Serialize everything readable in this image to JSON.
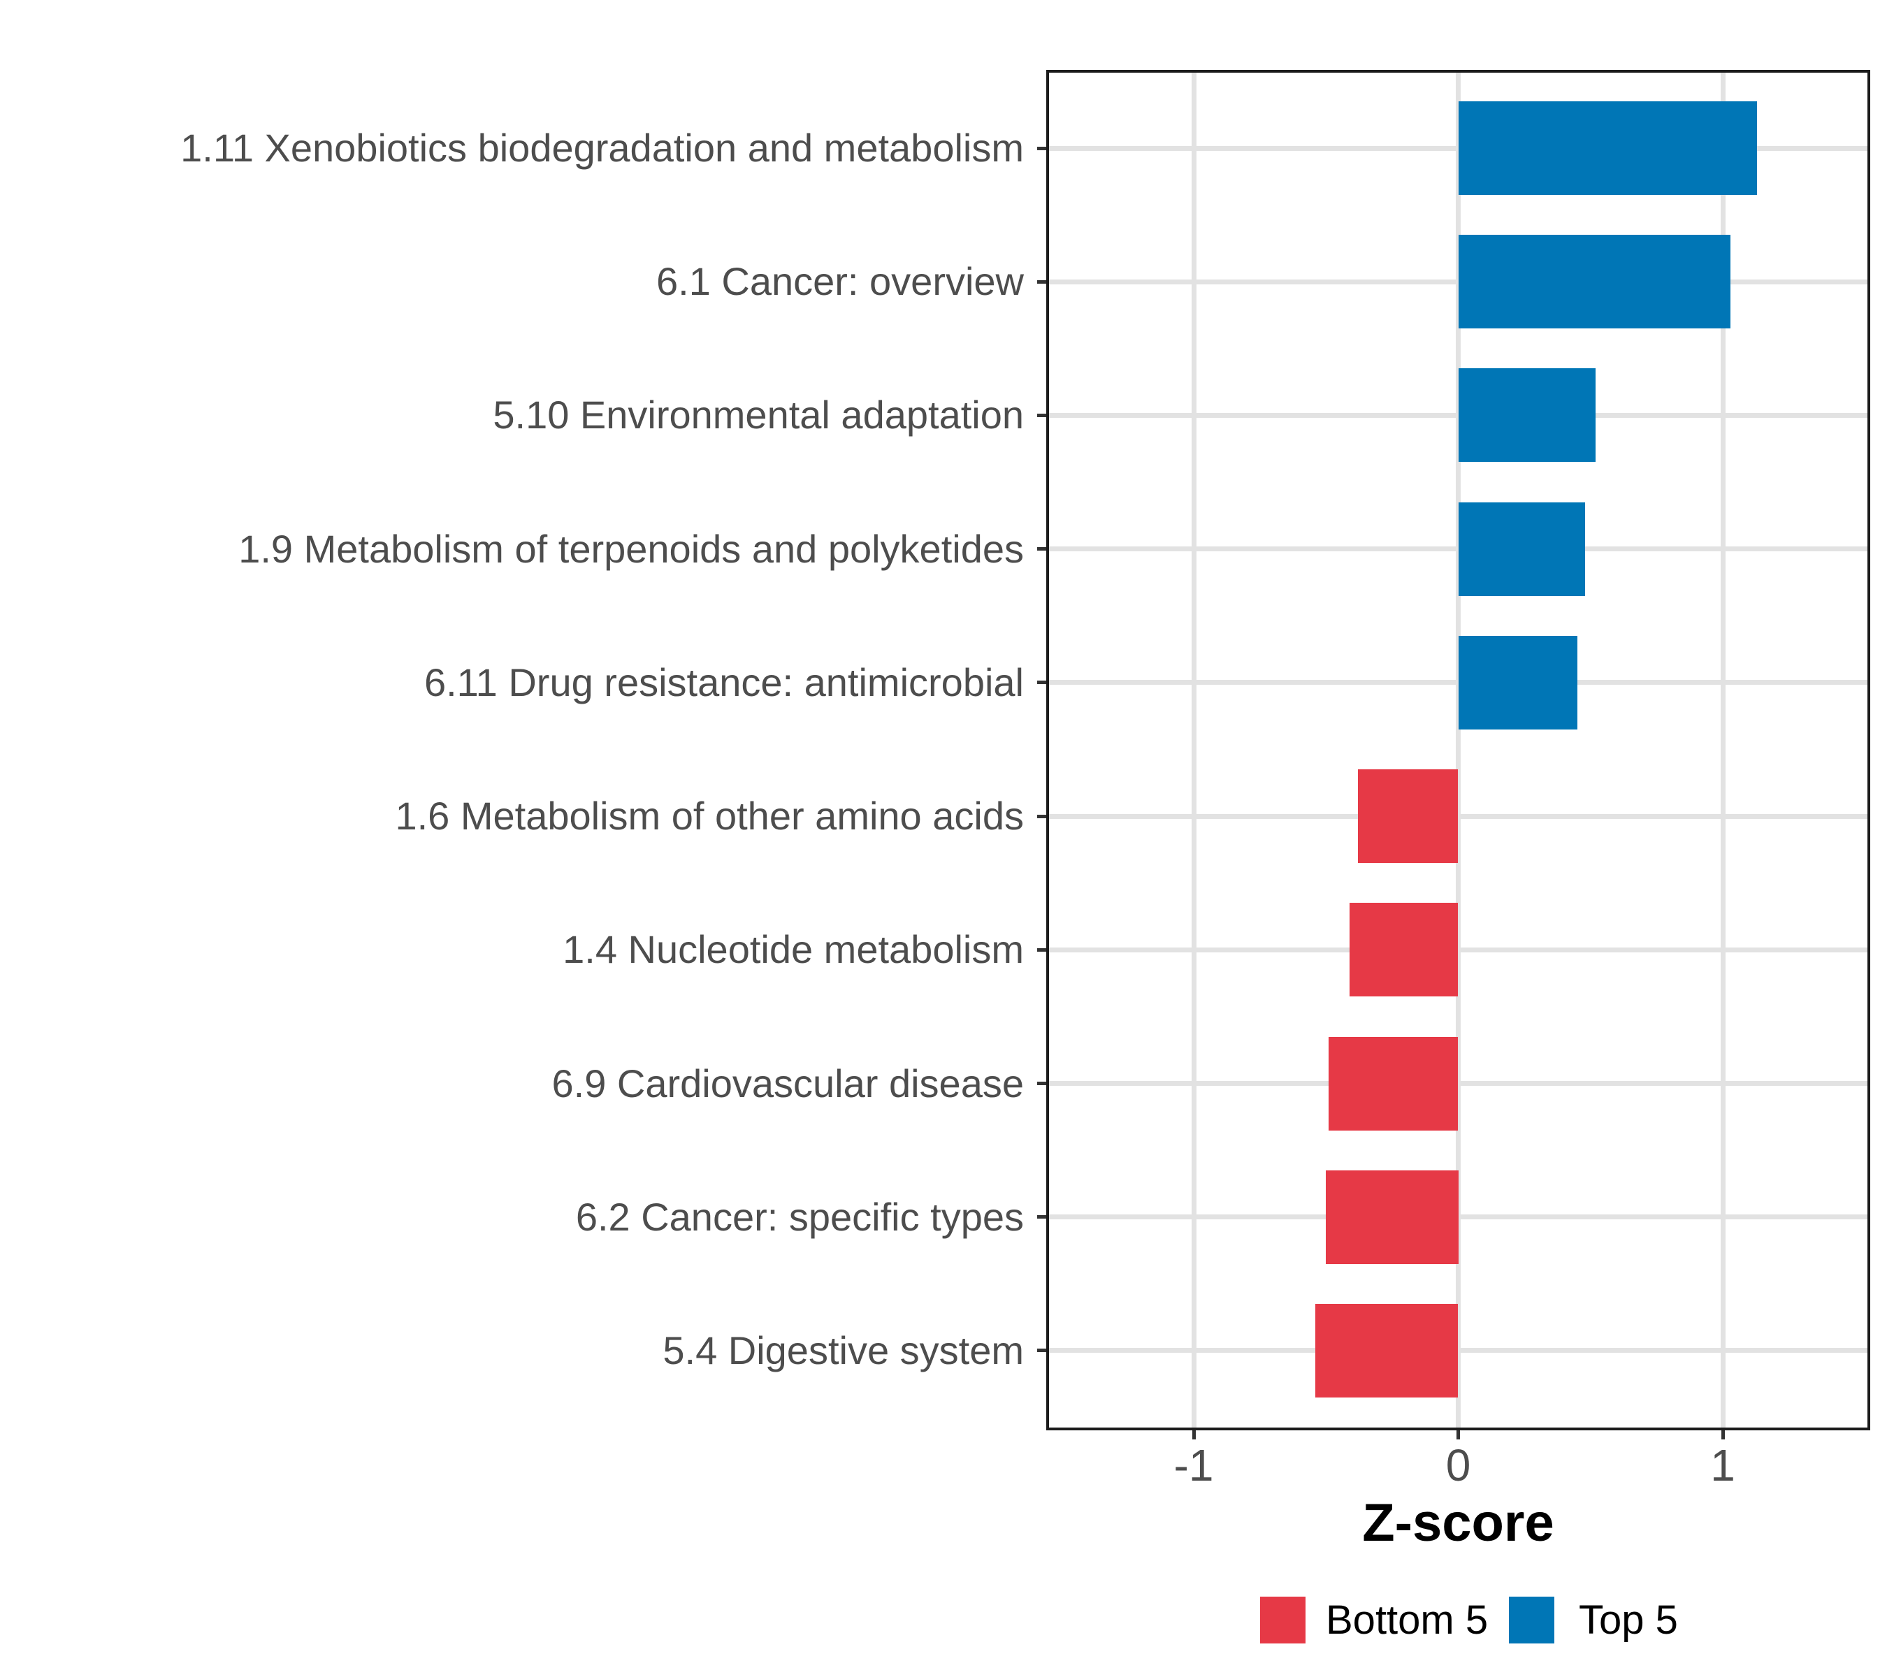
{
  "chart_data": {
    "type": "bar",
    "orientation": "horizontal",
    "title": "",
    "xlabel": "Z-score",
    "ylabel": "",
    "xlim": [
      -1.56,
      1.56
    ],
    "x_ticks": [
      "-1",
      "0",
      "1"
    ],
    "x_tick_values": [
      -1,
      0,
      1
    ],
    "grid": true,
    "legend_position": "bottom",
    "bars": [
      {
        "label": "1.11 Xenobiotics biodegradation and metabolism",
        "value": 1.13,
        "group": "Top 5"
      },
      {
        "label": "6.1 Cancer: overview",
        "value": 1.03,
        "group": "Top 5"
      },
      {
        "label": "5.10 Environmental adaptation",
        "value": 0.52,
        "group": "Top 5"
      },
      {
        "label": "1.9 Metabolism of terpenoids and polyketides",
        "value": 0.48,
        "group": "Top 5"
      },
      {
        "label": "6.11 Drug resistance: antimicrobial",
        "value": 0.45,
        "group": "Top 5"
      },
      {
        "label": "1.6 Metabolism of other amino acids",
        "value": -0.38,
        "group": "Bottom 5"
      },
      {
        "label": "1.4 Nucleotide metabolism",
        "value": -0.41,
        "group": "Bottom 5"
      },
      {
        "label": "6.9 Cardiovascular disease",
        "value": -0.49,
        "group": "Bottom 5"
      },
      {
        "label": "6.2 Cancer: specific types",
        "value": -0.5,
        "group": "Bottom 5"
      },
      {
        "label": "5.4 Digestive system",
        "value": -0.54,
        "group": "Bottom 5"
      }
    ],
    "legend": [
      {
        "label": "Bottom 5",
        "color": "#E63946"
      },
      {
        "label": "Top 5",
        "color": "#0076B6"
      }
    ],
    "colors": {
      "Top 5": "#0076B6",
      "Bottom 5": "#E63946",
      "gridline": "#E2E2E2",
      "axis_text": "#4D4D4D",
      "panel_border": "#1B1B1B",
      "tick": "#333333",
      "background": "#FFFFFF"
    }
  }
}
